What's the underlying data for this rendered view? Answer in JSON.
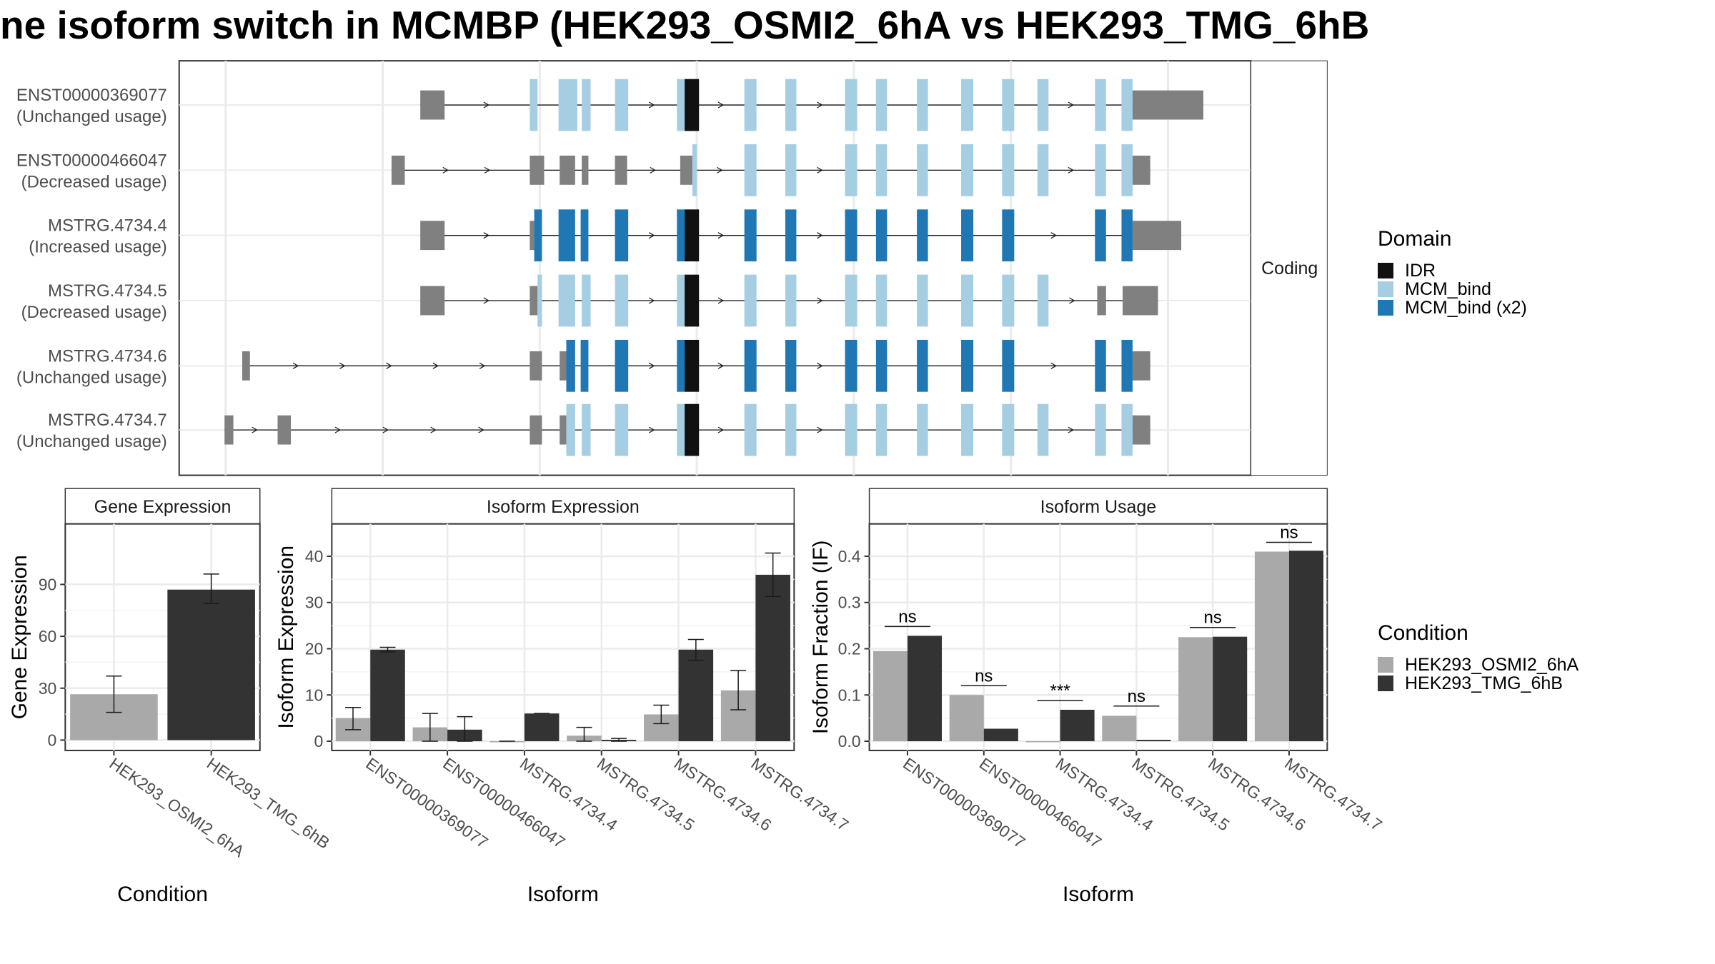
{
  "title": "ne isoform switch in MCMBP (HEK293_OSMI2_6hA vs HEK293_TMG_6hB",
  "colors": {
    "cond_a": "#a9a9a9",
    "cond_b": "#333333",
    "idr": "#111111",
    "mcm_bind": "#a6cee3",
    "mcm_bind_x2": "#1f78b4",
    "utr": "#808080",
    "grid": "#ebebeb",
    "strip": "#ffffff"
  },
  "chart_data": [
    {
      "type": "gene-structure",
      "strip_label": "Coding",
      "legend": {
        "title": "Domain",
        "entries": [
          {
            "name": "IDR",
            "color_key": "idr"
          },
          {
            "name": "MCM_bind",
            "color_key": "mcm_bind"
          },
          {
            "name": "MCM_bind (x2)",
            "color_key": "mcm_bind_x2"
          }
        ]
      },
      "transcripts": [
        {
          "id": "ENST00000369077",
          "usage": "(Unchanged usage)",
          "bind": "light",
          "exons": [
            [
              "u",
              380,
              402
            ],
            [
              "n",
              479,
              486
            ],
            [
              "b",
              505,
              522
            ],
            [
              "b",
              526,
              534
            ],
            [
              "b",
              556,
              568
            ],
            [
              "b",
              612,
              619
            ],
            [
              "i",
              619,
              632
            ],
            [
              "b",
              673,
              684
            ],
            [
              "b",
              710,
              720
            ],
            [
              "b",
              764,
              775
            ],
            [
              "b",
              792,
              802
            ],
            [
              "b",
              829,
              839
            ],
            [
              "b",
              869,
              880
            ],
            [
              "b",
              906,
              917
            ],
            [
              "b",
              938,
              948
            ],
            [
              "b",
              990,
              1000
            ],
            [
              "b",
              1014,
              1024
            ],
            [
              "u",
              1024,
              1088
            ]
          ],
          "start": 380,
          "end": 1088
        },
        {
          "id": "ENST00000466047",
          "usage": "(Decreased usage)",
          "bind": "light",
          "exons": [
            [
              "u",
              354,
              366
            ],
            [
              "u",
              479,
              492
            ],
            [
              "u",
              506,
              520
            ],
            [
              "u",
              526,
              532
            ],
            [
              "u",
              556,
              567
            ],
            [
              "u",
              615,
              626
            ],
            [
              "b",
              626,
              630
            ],
            [
              "b",
              673,
              684
            ],
            [
              "b",
              710,
              720
            ],
            [
              "b",
              764,
              775
            ],
            [
              "b",
              792,
              802
            ],
            [
              "b",
              829,
              839
            ],
            [
              "b",
              869,
              880
            ],
            [
              "b",
              906,
              917
            ],
            [
              "b",
              938,
              948
            ],
            [
              "b",
              990,
              1000
            ],
            [
              "b",
              1014,
              1024
            ],
            [
              "u",
              1024,
              1040
            ]
          ],
          "start": 354,
          "end": 1040
        },
        {
          "id": "MSTRG.4734.4",
          "usage": "(Increased usage)",
          "bind": "dark",
          "exons": [
            [
              "u",
              380,
              402
            ],
            [
              "u",
              479,
              483
            ],
            [
              "b",
              483,
              490
            ],
            [
              "b",
              505,
              520
            ],
            [
              "b",
              525,
              532
            ],
            [
              "b",
              556,
              568
            ],
            [
              "b",
              612,
              619
            ],
            [
              "i",
              619,
              632
            ],
            [
              "b",
              673,
              684
            ],
            [
              "b",
              710,
              720
            ],
            [
              "b",
              764,
              775
            ],
            [
              "b",
              792,
              802
            ],
            [
              "b",
              829,
              839
            ],
            [
              "b",
              869,
              880
            ],
            [
              "b",
              906,
              917
            ],
            [
              "b",
              990,
              1000
            ],
            [
              "b",
              1014,
              1024
            ],
            [
              "u",
              1024,
              1068
            ]
          ],
          "start": 380,
          "end": 1068
        },
        {
          "id": "MSTRG.4734.5",
          "usage": "(Decreased usage)",
          "bind": "light",
          "exons": [
            [
              "u",
              380,
              402
            ],
            [
              "u",
              479,
              486
            ],
            [
              "b",
              486,
              490
            ],
            [
              "b",
              505,
              520
            ],
            [
              "b",
              526,
              534
            ],
            [
              "b",
              556,
              568
            ],
            [
              "b",
              612,
              619
            ],
            [
              "i",
              619,
              632
            ],
            [
              "b",
              673,
              684
            ],
            [
              "b",
              710,
              720
            ],
            [
              "b",
              764,
              775
            ],
            [
              "b",
              792,
              802
            ],
            [
              "b",
              829,
              839
            ],
            [
              "b",
              869,
              880
            ],
            [
              "b",
              906,
              917
            ],
            [
              "b",
              938,
              948
            ],
            [
              "u",
              992,
              1000
            ],
            [
              "u",
              1015,
              1047
            ]
          ],
          "start": 380,
          "end": 1047
        },
        {
          "id": "MSTRG.4734.6",
          "usage": "(Unchanged usage)",
          "bind": "dark",
          "exons": [
            [
              "u",
              219,
              226
            ],
            [
              "u",
              479,
              490
            ],
            [
              "u",
              506,
              512
            ],
            [
              "b",
              512,
              520
            ],
            [
              "b",
              525,
              532
            ],
            [
              "b",
              556,
              568
            ],
            [
              "b",
              612,
              619
            ],
            [
              "i",
              619,
              632
            ],
            [
              "b",
              673,
              684
            ],
            [
              "b",
              710,
              720
            ],
            [
              "b",
              764,
              775
            ],
            [
              "b",
              792,
              802
            ],
            [
              "b",
              829,
              839
            ],
            [
              "b",
              869,
              880
            ],
            [
              "b",
              906,
              917
            ],
            [
              "b",
              990,
              1000
            ],
            [
              "b",
              1014,
              1024
            ],
            [
              "u",
              1024,
              1040
            ]
          ],
          "start": 219,
          "end": 1040
        },
        {
          "id": "MSTRG.4734.7",
          "usage": "(Unchanged usage)",
          "bind": "light",
          "exons": [
            [
              "u",
              203,
              211
            ],
            [
              "u",
              251,
              263
            ],
            [
              "u",
              479,
              490
            ],
            [
              "u",
              506,
              512
            ],
            [
              "b",
              512,
              520
            ],
            [
              "b",
              526,
              534
            ],
            [
              "b",
              556,
              568
            ],
            [
              "b",
              612,
              619
            ],
            [
              "i",
              619,
              632
            ],
            [
              "b",
              673,
              684
            ],
            [
              "b",
              710,
              720
            ],
            [
              "b",
              764,
              775
            ],
            [
              "b",
              792,
              802
            ],
            [
              "b",
              829,
              839
            ],
            [
              "b",
              869,
              880
            ],
            [
              "b",
              906,
              917
            ],
            [
              "b",
              938,
              948
            ],
            [
              "b",
              990,
              1000
            ],
            [
              "b",
              1014,
              1024
            ],
            [
              "u",
              1024,
              1040
            ]
          ],
          "start": 203,
          "end": 1040
        }
      ]
    },
    {
      "type": "bar",
      "strip_label": "Gene Expression",
      "ylabel": "Gene Expression",
      "xlabel": "Condition",
      "ylim": [
        -6,
        125
      ],
      "yticks": [
        0,
        30,
        60,
        90
      ],
      "categories": [
        "HEK293_OSMI2_6hA",
        "HEK293_TMG_6hB"
      ],
      "values": [
        26.5,
        87
      ],
      "errors": [
        [
          16,
          37
        ],
        [
          79,
          96
        ]
      ]
    },
    {
      "type": "bar",
      "strip_label": "Isoform Expression",
      "ylabel": "Isoform Expression",
      "xlabel": "Isoform",
      "ylim": [
        -2,
        47
      ],
      "yticks": [
        0,
        10,
        20,
        30,
        40
      ],
      "categories": [
        "ENST00000369077",
        "ENST00000466047",
        "MSTRG.4734.4",
        "MSTRG.4734.5",
        "MSTRG.4734.6",
        "MSTRG.4734.7"
      ],
      "series": [
        {
          "name": "HEK293_OSMI2_6hA",
          "color_key": "cond_a",
          "values": [
            5,
            3,
            0,
            1.2,
            5.8,
            11
          ],
          "errors": [
            [
              2.5,
              7.3
            ],
            [
              0,
              6
            ],
            [
              0,
              0
            ],
            [
              0,
              3
            ],
            [
              3.8,
              7.8
            ],
            [
              6.8,
              15.3
            ]
          ]
        },
        {
          "name": "HEK293_TMG_6hB",
          "color_key": "cond_b",
          "values": [
            19.8,
            2.5,
            6,
            0.3,
            19.8,
            36
          ],
          "errors": [
            [
              19.3,
              20.3
            ],
            [
              0,
              5.3
            ],
            [
              6,
              6
            ],
            [
              0,
              0.6
            ],
            [
              17.5,
              22
            ],
            [
              31.3,
              40.7
            ]
          ]
        }
      ]
    },
    {
      "type": "bar",
      "strip_label": "Isoform Usage",
      "ylabel": "Isoform Fraction (IF)",
      "xlabel": "Isoform",
      "ylim": [
        -0.02,
        0.47
      ],
      "yticks": [
        "0.0",
        "0.1",
        "0.2",
        "0.3",
        "0.4"
      ],
      "categories": [
        "ENST00000369077",
        "ENST00000466047",
        "MSTRG.4734.4",
        "MSTRG.4734.5",
        "MSTRG.4734.6",
        "MSTRG.4734.7"
      ],
      "series": [
        {
          "name": "HEK293_OSMI2_6hA",
          "color_key": "cond_a",
          "values": [
            0.195,
            0.1,
            0,
            0.055,
            0.225,
            0.41
          ]
        },
        {
          "name": "HEK293_TMG_6hB",
          "color_key": "cond_b",
          "values": [
            0.228,
            0.027,
            0.068,
            0.003,
            0.226,
            0.412
          ]
        }
      ],
      "annotations": [
        "ns",
        "ns",
        "***",
        "ns",
        "ns",
        "ns"
      ],
      "annotation_y": [
        0.248,
        0.12,
        0.088,
        0.076,
        0.246,
        0.43
      ]
    }
  ],
  "legend_condition": {
    "title": "Condition",
    "entries": [
      {
        "name": "HEK293_OSMI2_6hA",
        "color_key": "cond_a"
      },
      {
        "name": "HEK293_TMG_6hB",
        "color_key": "cond_b"
      }
    ]
  }
}
